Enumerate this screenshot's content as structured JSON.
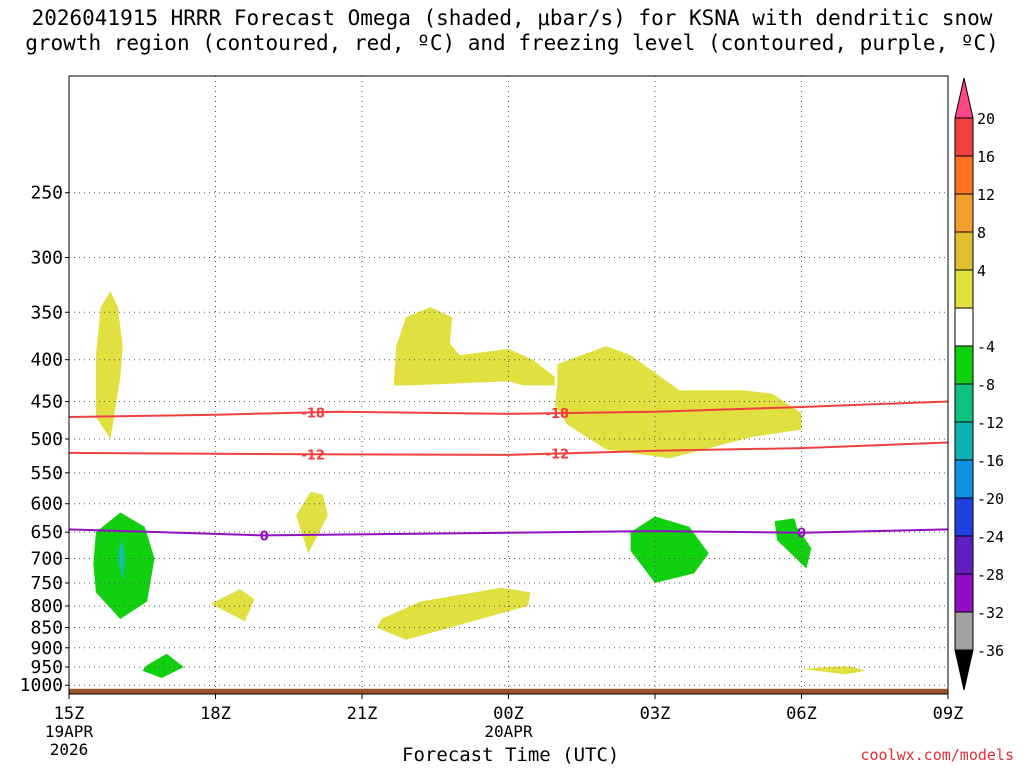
{
  "chart_data": {
    "type": "time-height cross section",
    "title_line1": "2026041915 HRRR Forecast Omega (shaded, μbar/s) for KSNA with dendritic snow",
    "title_line2": "growth region (contoured, red, ºC) and freezing level (contoured, purple, ºC)",
    "xlabel": "Forecast Time (UTC)",
    "x_ticks": [
      {
        "hour": 0,
        "label": "15Z",
        "sub": [
          "19APR",
          "2026"
        ]
      },
      {
        "hour": 3,
        "label": "18Z",
        "sub": []
      },
      {
        "hour": 6,
        "label": "21Z",
        "sub": []
      },
      {
        "hour": 9,
        "label": "00Z",
        "sub": [
          "20APR"
        ]
      },
      {
        "hour": 12,
        "label": "03Z",
        "sub": []
      },
      {
        "hour": 15,
        "label": "06Z",
        "sub": []
      },
      {
        "hour": 18,
        "label": "09Z",
        "sub": []
      }
    ],
    "x_range_hours": [
      0,
      18
    ],
    "y_range_hpa": [
      1025,
      180
    ],
    "y_ticks_hpa": [
      250,
      300,
      350,
      400,
      450,
      500,
      550,
      600,
      650,
      700,
      750,
      800,
      850,
      900,
      950,
      1000
    ],
    "colorbar": {
      "labels": [
        "20",
        "16",
        "12",
        "8",
        "4",
        "-4",
        "-8",
        "-12",
        "-16",
        "-20",
        "-24",
        "-28",
        "-32",
        "-36"
      ],
      "colors_top_to_bottom": [
        "#ff4488",
        "#f04040",
        "#ff7020",
        "#f0a030",
        "#e0c030",
        "#e0e040",
        "#ffffff",
        "#10d010",
        "#10c080",
        "#10b0b0",
        "#1090e0",
        "#2040e0",
        "#6020c0",
        "#9010c0",
        "#a0a0a0",
        "#000000"
      ]
    },
    "dgz_contours": [
      {
        "value": -18,
        "label": "-18",
        "color": "#f04040",
        "points": [
          [
            0,
            470
          ],
          [
            3,
            467
          ],
          [
            5.5,
            463
          ],
          [
            9,
            466
          ],
          [
            12,
            463
          ],
          [
            15,
            457
          ],
          [
            18,
            450
          ]
        ]
      },
      {
        "value": -12,
        "label": "-12",
        "color": "#f04040",
        "points": [
          [
            0,
            520
          ],
          [
            5,
            522
          ],
          [
            9,
            523
          ],
          [
            12,
            517
          ],
          [
            15,
            513
          ],
          [
            18,
            505
          ]
        ]
      }
    ],
    "freezing_level": {
      "value": 0,
      "label": "0",
      "color": "#9010c0",
      "points": [
        [
          0,
          645
        ],
        [
          4,
          656
        ],
        [
          9,
          651
        ],
        [
          12,
          648
        ],
        [
          15,
          651
        ],
        [
          18,
          645
        ]
      ]
    },
    "omega_regions": [
      {
        "fill": "#e0e040",
        "points": [
          [
            0.55,
            470
          ],
          [
            0.85,
            500
          ],
          [
            1.05,
            420
          ],
          [
            1.1,
            385
          ],
          [
            1.0,
            345
          ],
          [
            0.85,
            330
          ],
          [
            0.65,
            345
          ],
          [
            0.55,
            395
          ]
        ]
      },
      {
        "fill": "#e0e040",
        "points": [
          [
            6.65,
            430
          ],
          [
            7.0,
            430
          ],
          [
            9.0,
            425
          ],
          [
            9.3,
            430
          ],
          [
            9.95,
            430
          ],
          [
            9.95,
            420
          ],
          [
            9.5,
            400
          ],
          [
            9.0,
            388
          ],
          [
            8.0,
            395
          ],
          [
            7.8,
            382
          ],
          [
            7.85,
            355
          ],
          [
            7.4,
            345
          ],
          [
            6.9,
            355
          ],
          [
            6.7,
            385
          ]
        ]
      },
      {
        "fill": "#e0e040",
        "points": [
          [
            10.0,
            430
          ],
          [
            9.95,
            455
          ],
          [
            10.2,
            480
          ],
          [
            11.0,
            515
          ],
          [
            12.3,
            528
          ],
          [
            13.0,
            515
          ],
          [
            14.0,
            497
          ],
          [
            15.0,
            487
          ],
          [
            15.0,
            465
          ],
          [
            14.4,
            440
          ],
          [
            13.8,
            436
          ],
          [
            12.5,
            436
          ],
          [
            11.5,
            395
          ],
          [
            11.0,
            385
          ],
          [
            10.0,
            405
          ]
        ]
      },
      {
        "fill": "#e0e040",
        "points": [
          [
            4.95,
            580
          ],
          [
            4.65,
            620
          ],
          [
            4.9,
            690
          ],
          [
            5.3,
            620
          ],
          [
            5.2,
            585
          ]
        ]
      },
      {
        "fill": "#e0e040",
        "points": [
          [
            2.9,
            795
          ],
          [
            3.6,
            835
          ],
          [
            3.8,
            785
          ],
          [
            3.5,
            763
          ]
        ]
      },
      {
        "fill": "#e0e040",
        "points": [
          [
            6.3,
            850
          ],
          [
            6.9,
            880
          ],
          [
            9.4,
            800
          ],
          [
            9.45,
            770
          ],
          [
            8.85,
            760
          ],
          [
            7.2,
            790
          ],
          [
            6.4,
            830
          ]
        ]
      },
      {
        "fill": "#e0e040",
        "points": [
          [
            15.0,
            955
          ],
          [
            15.9,
            970
          ],
          [
            16.3,
            960
          ],
          [
            16.0,
            948
          ],
          [
            15.6,
            950
          ]
        ]
      },
      {
        "fill": "#10d010",
        "points": [
          [
            0.5,
            710
          ],
          [
            0.55,
            770
          ],
          [
            1.05,
            830
          ],
          [
            1.6,
            790
          ],
          [
            1.75,
            700
          ],
          [
            1.55,
            640
          ],
          [
            1.05,
            615
          ],
          [
            0.55,
            650
          ]
        ]
      },
      {
        "fill": "#10d010",
        "points": [
          [
            11.5,
            685
          ],
          [
            12.0,
            750
          ],
          [
            12.8,
            730
          ],
          [
            13.1,
            690
          ],
          [
            12.7,
            640
          ],
          [
            12.0,
            622
          ],
          [
            11.5,
            650
          ]
        ]
      },
      {
        "fill": "#10d010",
        "points": [
          [
            14.45,
            630
          ],
          [
            14.5,
            665
          ],
          [
            15.1,
            720
          ],
          [
            15.2,
            680
          ],
          [
            14.9,
            640
          ],
          [
            14.85,
            625
          ]
        ]
      },
      {
        "fill": "#10d010",
        "points": [
          [
            1.5,
            960
          ],
          [
            1.9,
            980
          ],
          [
            2.35,
            950
          ],
          [
            2.0,
            915
          ],
          [
            1.6,
            945
          ]
        ]
      },
      {
        "fill": "#10c0a0",
        "points": [
          [
            1.0,
            700
          ],
          [
            1.1,
            745
          ],
          [
            1.15,
            700
          ],
          [
            1.1,
            665
          ],
          [
            1.02,
            680
          ]
        ]
      }
    ],
    "terrain": {
      "fill": "#a0522d",
      "top_hpa": 1010
    }
  },
  "credit": "coolwx.com/models"
}
